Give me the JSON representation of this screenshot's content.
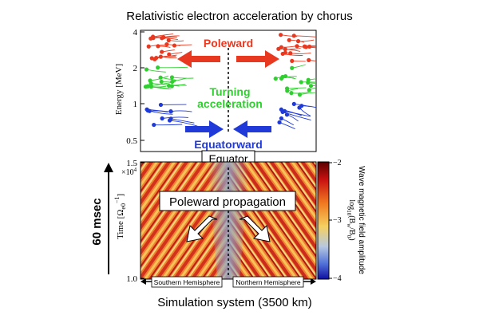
{
  "title": "Relativistic electron acceleration by chorus",
  "top_panel": {
    "ylabel": "Energy [MeV]",
    "tick_labels": [
      "4",
      "2",
      "1",
      "0.5"
    ],
    "labels": {
      "poleward": "Poleward",
      "turning_line1": "Turning",
      "turning_line2": "acceleration",
      "equatorward": "Equatorward"
    }
  },
  "equator_label": "Equator",
  "bottom_panel": {
    "ylabel": "Time [Ω",
    "ylabel_sub": "e0",
    "ylabel_sup": "−1",
    "ylabel_close": "]",
    "y_multiplier": "×10",
    "y_multiplier_exp": "4",
    "tick_labels": [
      "1.5",
      "1.0"
    ],
    "side_label": "60 msec",
    "propagation_label": "Poleward propagation",
    "hemisphere_south": "Southern Hemisphere",
    "hemisphere_north": "Northern Hemisphere",
    "xlabel": "Simulation system (3500 km)"
  },
  "colorbar": {
    "tick_labels": [
      "−2",
      "−3",
      "−4"
    ],
    "label_line1": "Wave magnetic field amplitude",
    "label_line2_pre": "log",
    "label_line2_sub": "10",
    "label_line2_post": "(B",
    "label_line2_sub2": "w",
    "label_line2_end": "/B",
    "label_line2_sub3": "0",
    "label_line2_close": ")"
  },
  "colors": {
    "poleward": "#e8381f",
    "turning": "#2fcf2f",
    "equatorward": "#1f3ad8",
    "cbar_high": "#b01010",
    "cbar_mid": "#f0a030",
    "cbar_low": "#2020c0"
  },
  "chart_data": {
    "type": "heatmap",
    "panels": [
      {
        "name": "energy",
        "type": "scatter",
        "ylabel": "Energy [MeV]",
        "yscale": "log",
        "ylim": [
          0.4,
          4
        ],
        "ticks": [
          0.5,
          1,
          2,
          4
        ]
      },
      {
        "name": "time",
        "type": "heatmap",
        "ylabel": "Time [Ωe0⁻¹]",
        "ylim": [
          10000,
          15000
        ],
        "ticks": [
          10000,
          15000
        ],
        "xlabel": "Simulation system (3500 km)",
        "colorbar_range": [
          -4,
          -2
        ],
        "colorbar_ticks": [
          -2,
          -3,
          -4
        ]
      }
    ]
  }
}
